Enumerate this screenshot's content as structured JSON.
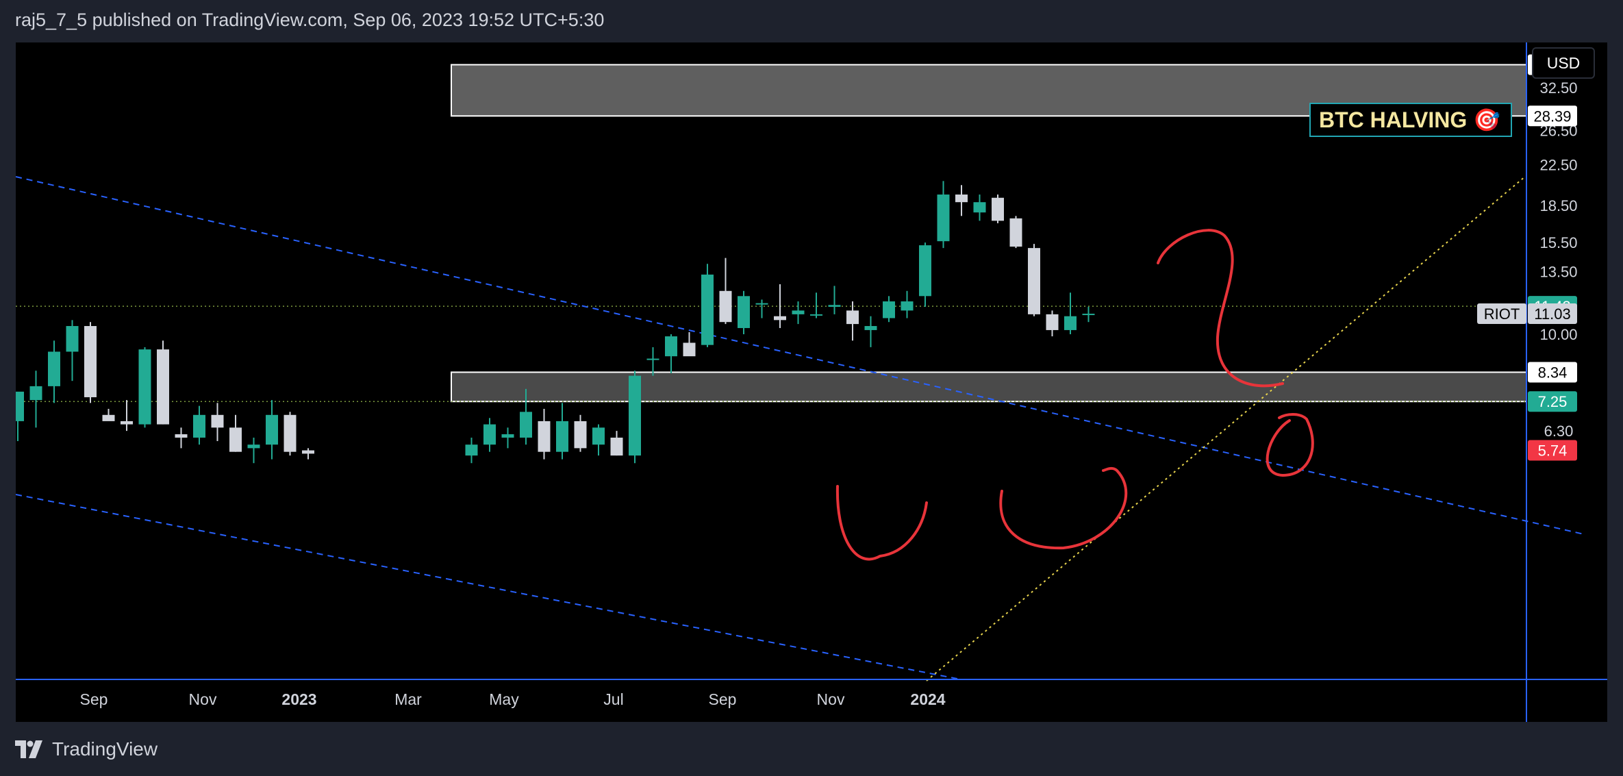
{
  "header": {
    "text": "raj5_7_5 published on TradingView.com, Sep 06, 2023 19:52 UTC+5:30"
  },
  "footer": {
    "brand": "TradingView"
  },
  "chart_data": {
    "type": "candlestick",
    "symbol": "RIOT",
    "currency": "USD",
    "y_scale": "log",
    "ylim": [
      5.5,
      40
    ],
    "y_ticks": [
      "32.50",
      "26.50",
      "22.50",
      "18.50",
      "15.50",
      "13.50",
      "10.00",
      "6.30"
    ],
    "x_ticks": [
      {
        "label": "Sep",
        "x": "2022-09"
      },
      {
        "label": "Nov",
        "x": "2022-11"
      },
      {
        "label": "2023",
        "x": "2023-01",
        "bold": true
      },
      {
        "label": "Mar",
        "x": "2023-03"
      },
      {
        "label": "May",
        "x": "2023-05"
      },
      {
        "label": "Jul",
        "x": "2023-07"
      },
      {
        "label": "Sep",
        "x": "2023-09"
      },
      {
        "label": "Nov",
        "x": "2023-11"
      },
      {
        "label": "2024",
        "x": "2024-01",
        "bold": true
      }
    ],
    "price_tags": [
      {
        "value": "36.27",
        "style": "outline"
      },
      {
        "value": "28.39",
        "style": "outline"
      },
      {
        "value": "11.43",
        "style": "green"
      },
      {
        "value": "11.03",
        "style": "gray",
        "label": "RIOT"
      },
      {
        "value": "8.34",
        "style": "outline"
      },
      {
        "value": "7.25",
        "style": "green"
      },
      {
        "value": "5.74",
        "style": "red"
      }
    ],
    "annotations": {
      "halving_label": "BTC HALVING 🎯",
      "upper_zone": [
        28.39,
        36.27
      ],
      "lower_zone": [
        7.25,
        8.34
      ]
    },
    "candles": [
      {
        "o": 6.6,
        "h": 7.5,
        "l": 6.0,
        "c": 7.6
      },
      {
        "o": 7.3,
        "h": 8.4,
        "l": 6.4,
        "c": 7.8
      },
      {
        "o": 7.8,
        "h": 9.7,
        "l": 7.2,
        "c": 9.2
      },
      {
        "o": 9.2,
        "h": 10.7,
        "l": 8.0,
        "c": 10.4
      },
      {
        "o": 10.4,
        "h": 10.6,
        "l": 7.2,
        "c": 7.4
      },
      {
        "o": 6.8,
        "h": 7.0,
        "l": 6.7,
        "c": 6.6
      },
      {
        "o": 6.6,
        "h": 7.3,
        "l": 6.3,
        "c": 6.5
      },
      {
        "o": 6.5,
        "h": 9.4,
        "l": 6.4,
        "c": 9.3
      },
      {
        "o": 9.3,
        "h": 9.7,
        "l": 6.5,
        "c": 6.5
      },
      {
        "o": 6.2,
        "h": 6.4,
        "l": 5.8,
        "c": 6.1
      },
      {
        "o": 6.1,
        "h": 7.1,
        "l": 5.9,
        "c": 6.8
      },
      {
        "o": 6.8,
        "h": 7.2,
        "l": 6.0,
        "c": 6.4
      },
      {
        "o": 6.4,
        "h": 6.8,
        "l": 5.7,
        "c": 5.7
      },
      {
        "o": 5.8,
        "h": 6.1,
        "l": 5.4,
        "c": 5.9
      },
      {
        "o": 5.9,
        "h": 7.3,
        "l": 5.5,
        "c": 6.8
      },
      {
        "o": 6.8,
        "h": 6.9,
        "l": 5.6,
        "c": 5.7
      },
      {
        "o": 5.74,
        "h": 5.8,
        "l": 5.5,
        "c": 5.65
      },
      null,
      null,
      null,
      null,
      null,
      null,
      null,
      null,
      {
        "o": 5.6,
        "h": 6.1,
        "l": 5.4,
        "c": 5.9
      },
      {
        "o": 5.9,
        "h": 6.7,
        "l": 5.7,
        "c": 6.5
      },
      {
        "o": 6.1,
        "h": 6.4,
        "l": 5.8,
        "c": 6.2
      },
      {
        "o": 6.1,
        "h": 7.7,
        "l": 5.9,
        "c": 6.9
      },
      {
        "o": 6.6,
        "h": 7.0,
        "l": 5.5,
        "c": 5.7
      },
      {
        "o": 5.7,
        "h": 7.2,
        "l": 5.5,
        "c": 6.6
      },
      {
        "o": 6.6,
        "h": 6.8,
        "l": 5.7,
        "c": 5.8
      },
      {
        "o": 5.9,
        "h": 6.5,
        "l": 5.6,
        "c": 6.4
      },
      {
        "o": 6.1,
        "h": 6.3,
        "l": 5.6,
        "c": 5.6
      },
      {
        "o": 5.6,
        "h": 8.4,
        "l": 5.4,
        "c": 8.2
      },
      {
        "o": 8.9,
        "h": 9.4,
        "l": 8.2,
        "c": 8.9
      },
      {
        "o": 9.0,
        "h": 10.0,
        "l": 8.3,
        "c": 9.9
      },
      {
        "o": 9.6,
        "h": 10.1,
        "l": 9.1,
        "c": 9.0
      },
      {
        "o": 9.5,
        "h": 14.0,
        "l": 9.4,
        "c": 13.3
      },
      {
        "o": 12.3,
        "h": 14.4,
        "l": 10.5,
        "c": 10.6
      },
      {
        "o": 10.3,
        "h": 12.3,
        "l": 10.0,
        "c": 12.0
      },
      {
        "o": 11.6,
        "h": 11.8,
        "l": 10.8,
        "c": 11.6
      },
      {
        "o": 10.9,
        "h": 12.7,
        "l": 10.3,
        "c": 10.7
      },
      {
        "o": 11.0,
        "h": 11.7,
        "l": 10.5,
        "c": 11.2
      },
      {
        "o": 11.0,
        "h": 12.2,
        "l": 10.8,
        "c": 11.0
      },
      {
        "o": 11.4,
        "h": 12.6,
        "l": 11.0,
        "c": 11.5
      },
      {
        "o": 11.2,
        "h": 11.7,
        "l": 9.7,
        "c": 10.5
      },
      {
        "o": 10.2,
        "h": 10.9,
        "l": 9.4,
        "c": 10.4
      },
      {
        "o": 10.8,
        "h": 12.0,
        "l": 10.6,
        "c": 11.7
      },
      {
        "o": 11.2,
        "h": 12.3,
        "l": 10.8,
        "c": 11.7
      },
      {
        "o": 12.0,
        "h": 15.5,
        "l": 11.4,
        "c": 15.3
      },
      {
        "o": 15.6,
        "h": 20.8,
        "l": 15.1,
        "c": 19.5
      },
      {
        "o": 19.5,
        "h": 20.4,
        "l": 17.6,
        "c": 18.8
      },
      {
        "o": 17.9,
        "h": 19.5,
        "l": 17.2,
        "c": 18.8
      },
      {
        "o": 19.2,
        "h": 19.5,
        "l": 17.0,
        "c": 17.2
      },
      {
        "o": 17.4,
        "h": 17.6,
        "l": 15.1,
        "c": 15.2
      },
      {
        "o": 15.1,
        "h": 15.4,
        "l": 10.9,
        "c": 11.0
      },
      {
        "o": 11.0,
        "h": 11.2,
        "l": 9.9,
        "c": 10.2
      },
      {
        "o": 10.2,
        "h": 12.2,
        "l": 10.0,
        "c": 10.9
      },
      {
        "o": 11.03,
        "h": 11.4,
        "l": 10.6,
        "c": 11.03
      }
    ]
  }
}
